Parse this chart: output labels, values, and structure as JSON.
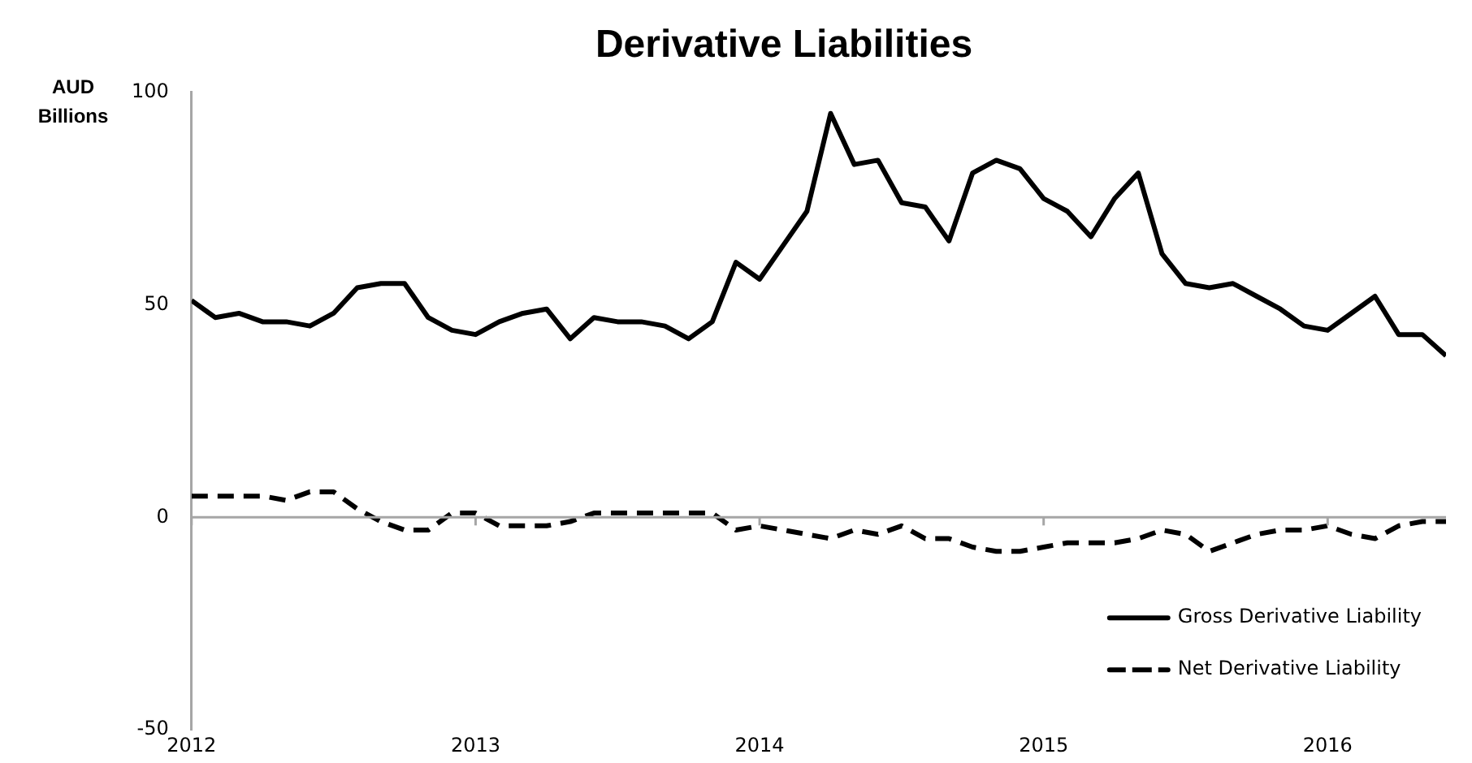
{
  "chart_data": {
    "type": "line",
    "title": "Derivative Liabilities",
    "ylabel": "AUD Billions",
    "x": [
      "2012-01",
      "2012-02",
      "2012-03",
      "2012-04",
      "2012-05",
      "2012-06",
      "2012-07",
      "2012-08",
      "2012-09",
      "2012-10",
      "2012-11",
      "2012-12",
      "2013-01",
      "2013-02",
      "2013-03",
      "2013-04",
      "2013-05",
      "2013-06",
      "2013-07",
      "2013-08",
      "2013-09",
      "2013-10",
      "2013-11",
      "2013-12",
      "2014-01",
      "2014-02",
      "2014-03",
      "2014-04",
      "2014-05",
      "2014-06",
      "2014-07",
      "2014-08",
      "2014-09",
      "2014-10",
      "2014-11",
      "2014-12",
      "2015-01",
      "2015-02",
      "2015-03",
      "2015-04",
      "2015-05",
      "2015-06",
      "2015-07",
      "2015-08",
      "2015-09",
      "2015-10",
      "2015-11",
      "2015-12",
      "2016-01",
      "2016-02",
      "2016-03",
      "2016-04",
      "2016-05",
      "2016-06"
    ],
    "series": [
      {
        "name": "Gross Derivative Liability",
        "color": "#000000",
        "line_style": "solid",
        "values": [
          51,
          47,
          48,
          46,
          46,
          45,
          48,
          54,
          55,
          55,
          47,
          44,
          43,
          46,
          48,
          49,
          42,
          47,
          46,
          46,
          45,
          42,
          46,
          60,
          56,
          64,
          72,
          95,
          83,
          84,
          74,
          73,
          65,
          81,
          84,
          82,
          75,
          72,
          66,
          75,
          81,
          62,
          55,
          54,
          55,
          52,
          49,
          45,
          44,
          48,
          52,
          43,
          43,
          38
        ]
      },
      {
        "name": "Net Derivative Liability",
        "color": "#000000",
        "line_style": "dashed",
        "values": [
          5,
          5,
          5,
          5,
          4,
          6,
          6,
          2,
          -1,
          -3,
          -3,
          1,
          1,
          -2,
          -2,
          -2,
          -1,
          1,
          1,
          1,
          1,
          1,
          1,
          -3,
          -2,
          -3,
          -4,
          -5,
          -3,
          -4,
          -2,
          -5,
          -5,
          -7,
          -8,
          -8,
          -7,
          -6,
          -6,
          -6,
          -5,
          -3,
          -4,
          -8,
          -6,
          -4,
          -3,
          -3,
          -2,
          -4,
          -5,
          -2,
          -1,
          -1
        ]
      }
    ],
    "xlim": [
      "2012-01",
      "2016-06"
    ],
    "xticks": [
      "2012",
      "2013",
      "2014",
      "2015",
      "2016"
    ],
    "ylim": [
      -50,
      100
    ],
    "yticks": [
      -50,
      0,
      50,
      100
    ],
    "ref_lines": [
      {
        "axis": "y",
        "value": 0,
        "color": "#a6a6a6"
      }
    ],
    "grid": false,
    "legend": "bottom right",
    "marker": "none"
  }
}
